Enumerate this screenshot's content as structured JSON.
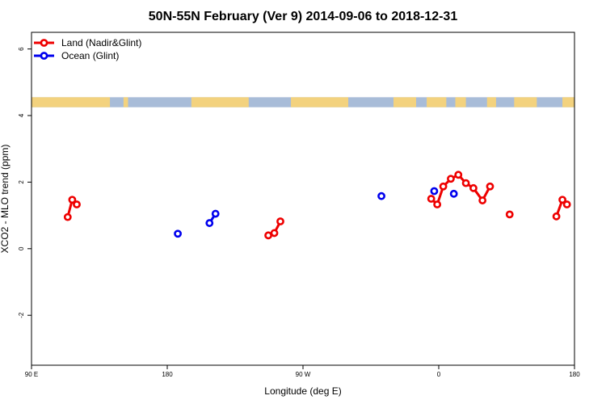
{
  "chart_data": {
    "type": "scatter",
    "title": "50N-55N February (Ver 9)   2014-09-06 to 2018-12-31",
    "xlabel": "Longitude (deg E)",
    "ylabel": "XCO2 - MLO trend (ppm)",
    "xlim": [
      90,
      450
    ],
    "ylim": [
      -3.5,
      6.5
    ],
    "x_ticks": [
      {
        "value": 90,
        "label": "90 E"
      },
      {
        "value": 180,
        "label": "180"
      },
      {
        "value": 270,
        "label": "90 W"
      },
      {
        "value": 360,
        "label": "0"
      },
      {
        "value": 450,
        "label": "180"
      }
    ],
    "y_ticks": [
      {
        "value": -2,
        "label": "-2"
      },
      {
        "value": 0,
        "label": "0"
      },
      {
        "value": 2,
        "label": "2"
      },
      {
        "value": 4,
        "label": "4"
      },
      {
        "value": 6,
        "label": "6"
      }
    ],
    "legend_position": "top-left",
    "series": [
      {
        "name": "Land (Nadir&Glint)",
        "color": "#ee0000",
        "segments": [
          [
            [
              114,
              0.95
            ],
            [
              117,
              1.47
            ],
            [
              120,
              1.33
            ]
          ],
          [
            [
              247,
              0.4
            ],
            [
              251,
              0.47
            ],
            [
              255,
              0.82
            ]
          ],
          [
            [
              355,
              1.5
            ],
            [
              359,
              1.33
            ],
            [
              363,
              1.87
            ],
            [
              368,
              2.1
            ],
            [
              373,
              2.22
            ],
            [
              378,
              1.97
            ],
            [
              383,
              1.82
            ],
            [
              389,
              1.45
            ],
            [
              394,
              1.87
            ]
          ],
          [
            [
              438,
              0.97
            ],
            [
              442,
              1.47
            ],
            [
              445,
              1.33
            ]
          ]
        ],
        "singles": [
          [
            407,
            1.03
          ]
        ]
      },
      {
        "name": "Ocean (Glint)",
        "color": "#0000ee",
        "segments": [
          [
            [
              208,
              0.77
            ],
            [
              212,
              1.05
            ]
          ]
        ],
        "singles": [
          [
            187,
            0.45
          ],
          [
            322,
            1.58
          ],
          [
            357,
            1.73
          ],
          [
            370,
            1.65
          ]
        ]
      }
    ],
    "map_strip": {
      "y_range": [
        4.25,
        4.55
      ],
      "ocean_color": "#a8bcd8",
      "land_color": "#f3d27e",
      "land_intervals": [
        [
          90,
          142
        ],
        [
          151,
          154
        ],
        [
          196,
          234
        ],
        [
          262,
          300
        ],
        [
          330,
          345
        ],
        [
          352,
          360
        ],
        [
          360,
          365
        ],
        [
          371,
          378
        ],
        [
          392,
          398
        ],
        [
          410,
          425
        ],
        [
          442,
          450
        ]
      ]
    }
  }
}
